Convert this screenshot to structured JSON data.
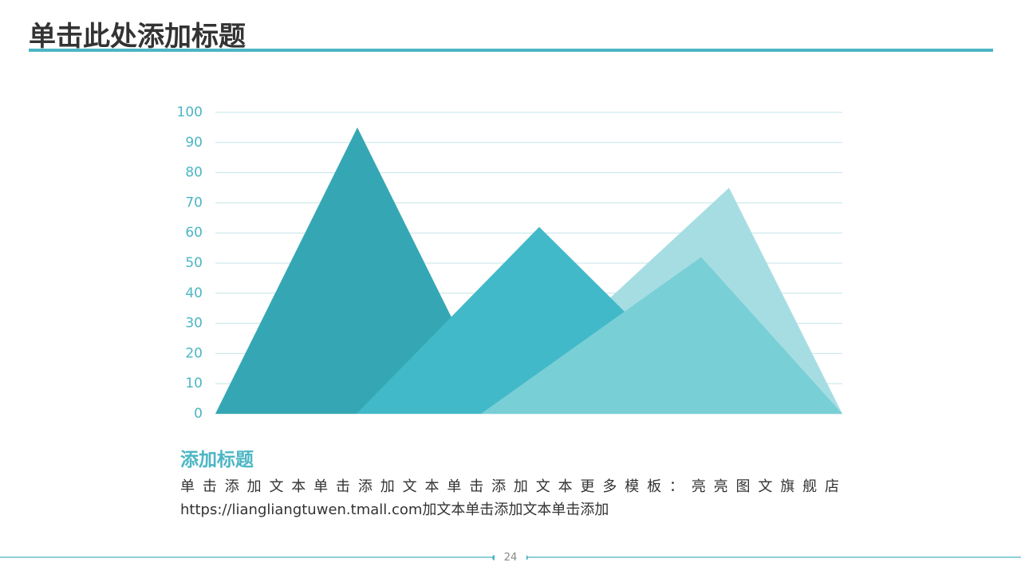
{
  "header": {
    "title": "单击此处添加标题"
  },
  "chart_data": {
    "type": "bar",
    "categories": [
      null,
      null,
      null,
      null
    ],
    "values": [
      95,
      75,
      62,
      52
    ],
    "colors": [
      "#35a7b4",
      "#a6dde3",
      "#42b9c8",
      "#79cfd6"
    ],
    "ylim": [
      0,
      100
    ],
    "yticks": [
      0,
      10,
      20,
      30,
      40,
      50,
      60,
      70,
      80,
      90,
      100
    ],
    "grid": true
  },
  "text": {
    "heading": "添加标题",
    "lines": [
      "单击添加文本单击添加文本单击添加文本更多模板：亮亮图文旗舰店",
      "https://liangliangtuwen.tmall.com加文本单击添加文本单击添加"
    ]
  },
  "footer": {
    "page": "24"
  }
}
